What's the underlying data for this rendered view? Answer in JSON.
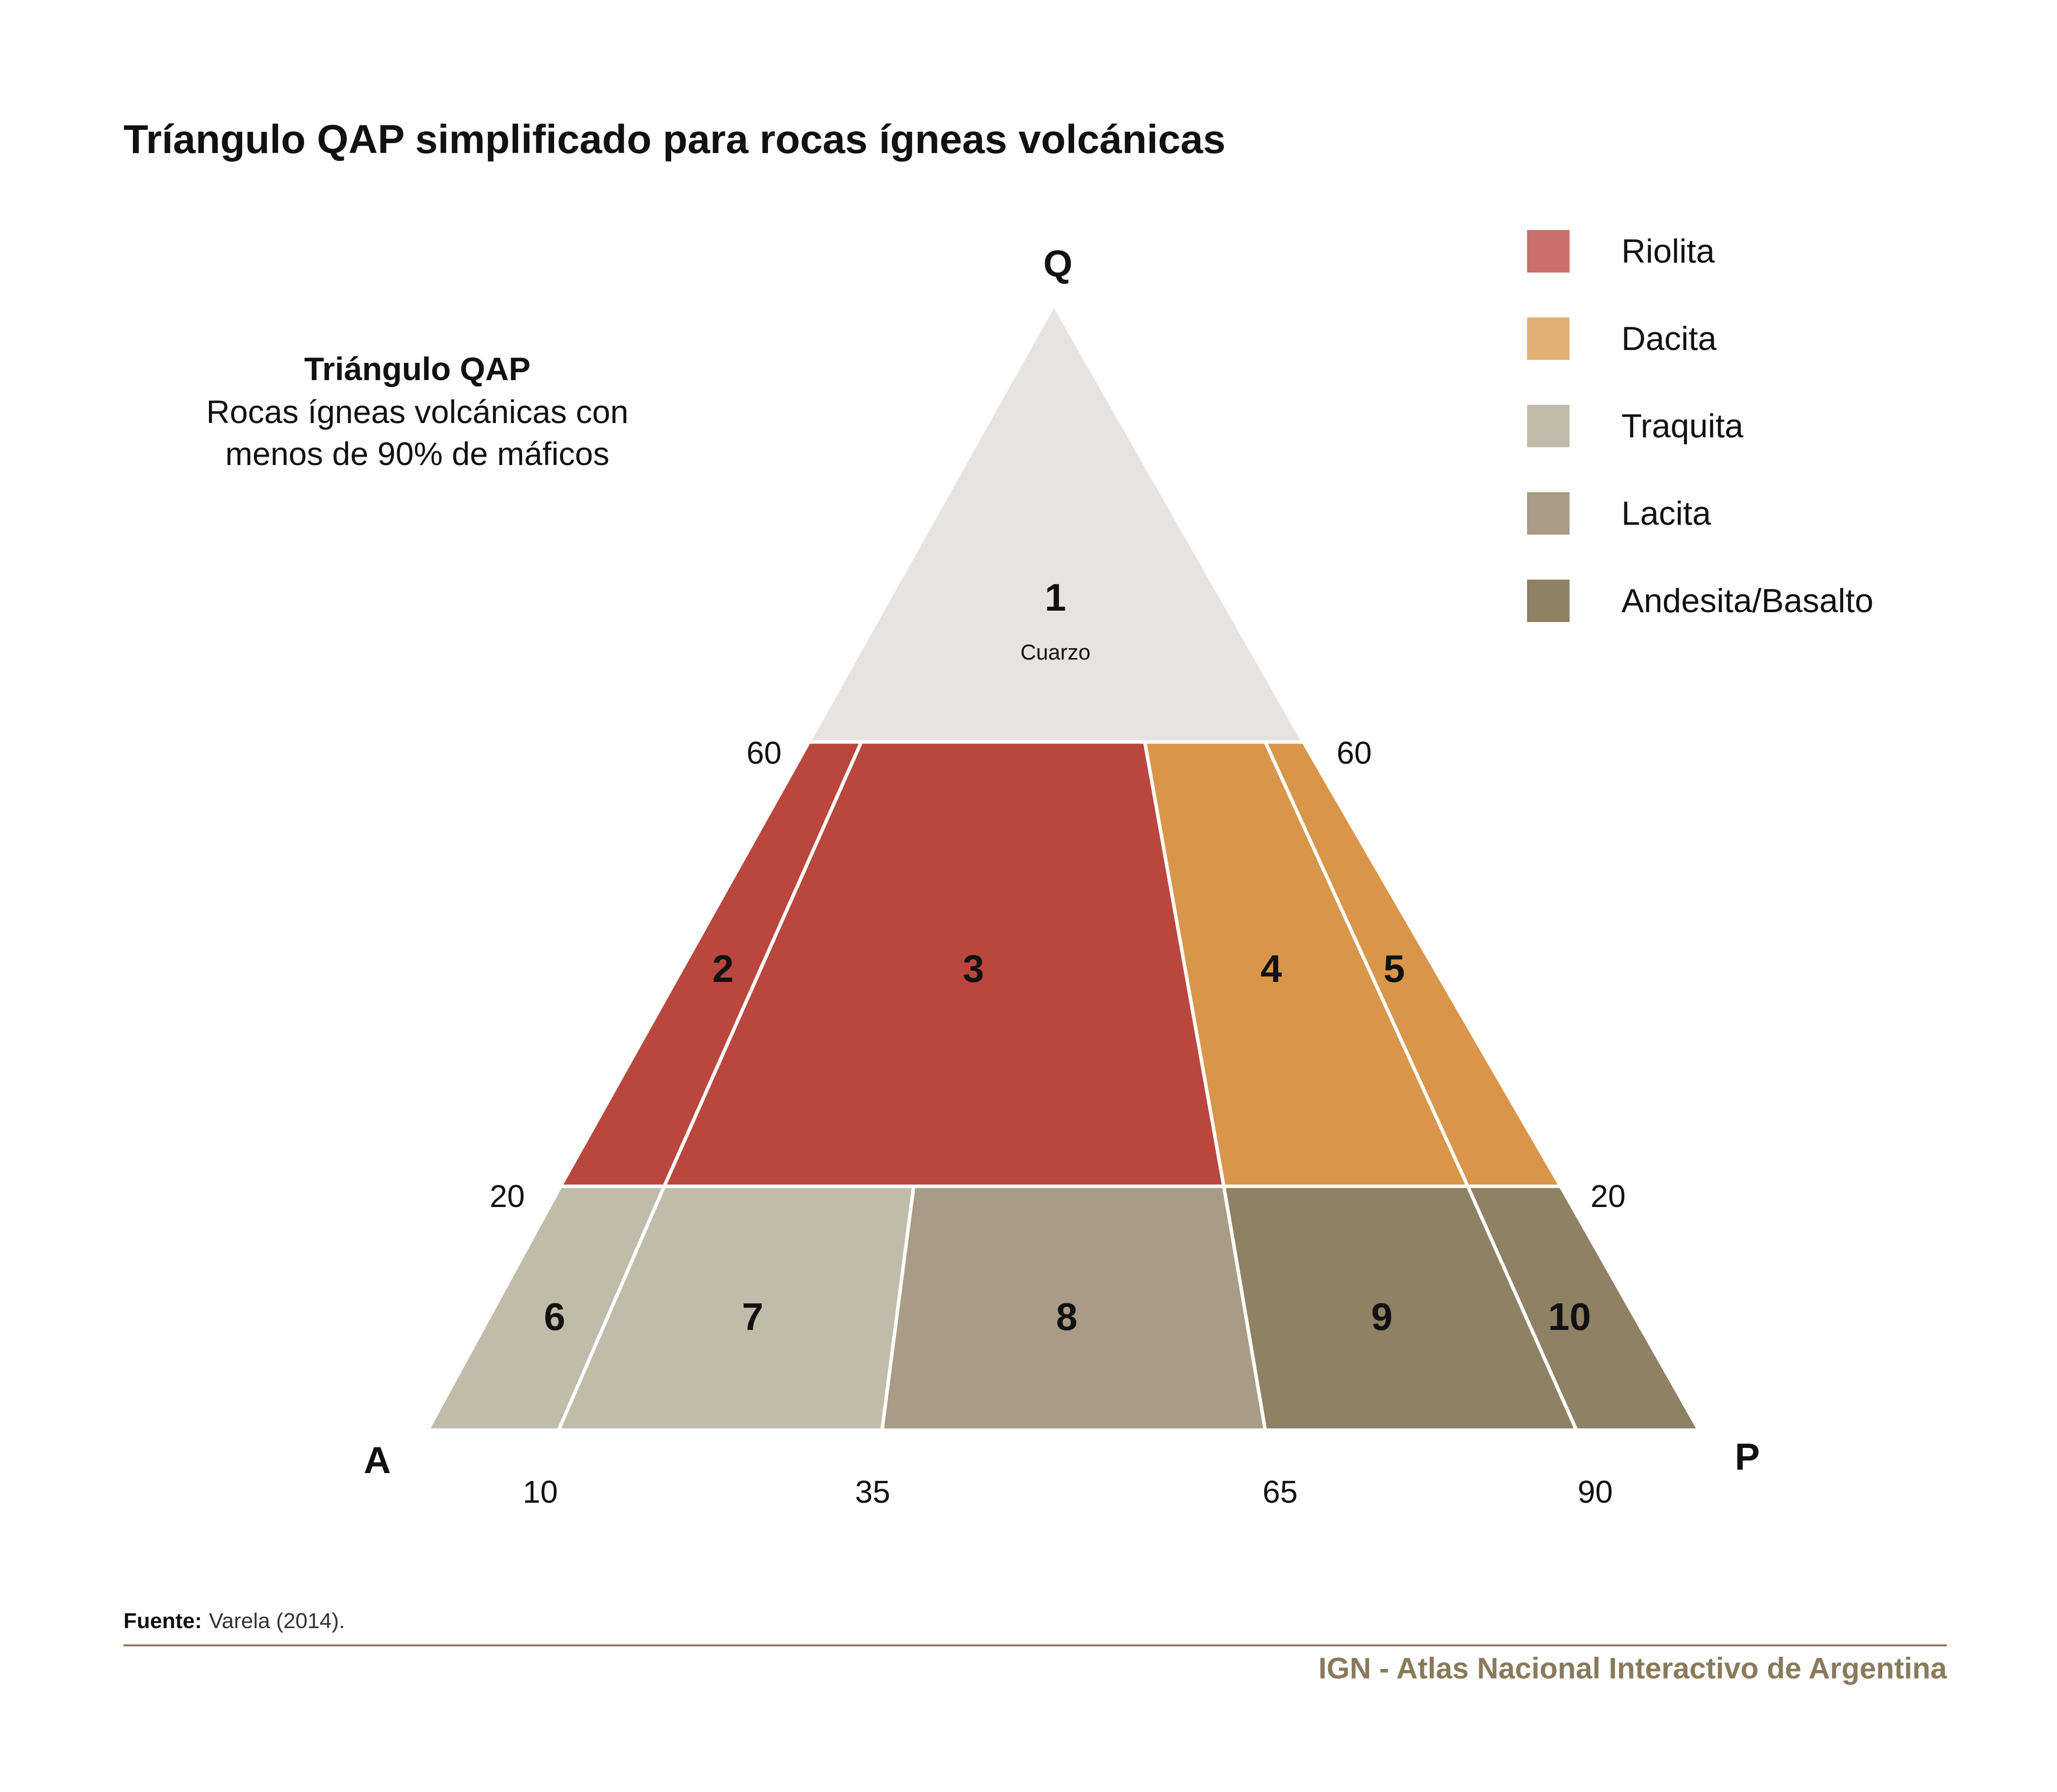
{
  "title": "Tríangulo QAP simplificado para rocas ígneas volcánicas",
  "inset": {
    "title": "Triángulo QAP",
    "line1": "Rocas ígneas volcánicas con",
    "line2": "menos de 90% de máficos"
  },
  "vertices": {
    "q": "Q",
    "a": "A",
    "p": "P"
  },
  "colors": {
    "cuarzo": "#e7e3e0",
    "riolita_field": "#b9473e",
    "dacita_field": "#d9964a",
    "traquita": "#bfbcaa",
    "lacita": "#a89c87",
    "andesita_basalto": "#8e8164",
    "legend_riolita": "#c9706b",
    "legend_dacita": "#e2b072",
    "rule": "#8a7a5c"
  },
  "fields": [
    {
      "number": "1",
      "note": "Cuarzo",
      "legend": "none"
    },
    {
      "number": "2",
      "legend": "Riolita"
    },
    {
      "number": "3",
      "legend": "Riolita"
    },
    {
      "number": "4",
      "legend": "Dacita"
    },
    {
      "number": "5",
      "legend": "Dacita"
    },
    {
      "number": "6",
      "legend": "Traquita"
    },
    {
      "number": "7",
      "legend": "Traquita"
    },
    {
      "number": "8",
      "legend": "Lacita"
    },
    {
      "number": "9",
      "legend": "Andesita/Basalto"
    },
    {
      "number": "10",
      "legend": "Andesita/Basalto"
    }
  ],
  "q_ticks": {
    "left_60": "60",
    "right_60": "60",
    "left_20": "20",
    "right_20": "20"
  },
  "base_ticks": [
    "10",
    "35",
    "65",
    "90"
  ],
  "legend": [
    {
      "label": "Riolita",
      "color": "#c9706b"
    },
    {
      "label": "Dacita",
      "color": "#e2b072"
    },
    {
      "label": "Traquita",
      "color": "#bfbcaa"
    },
    {
      "label": "Lacita",
      "color": "#a89c87"
    },
    {
      "label": "Andesita/Basalto",
      "color": "#8e8164"
    }
  ],
  "source": {
    "label": "Fuente:",
    "text": "Varela (2014)."
  },
  "credit": "IGN - Atlas Nacional Interactivo de Argentina"
}
